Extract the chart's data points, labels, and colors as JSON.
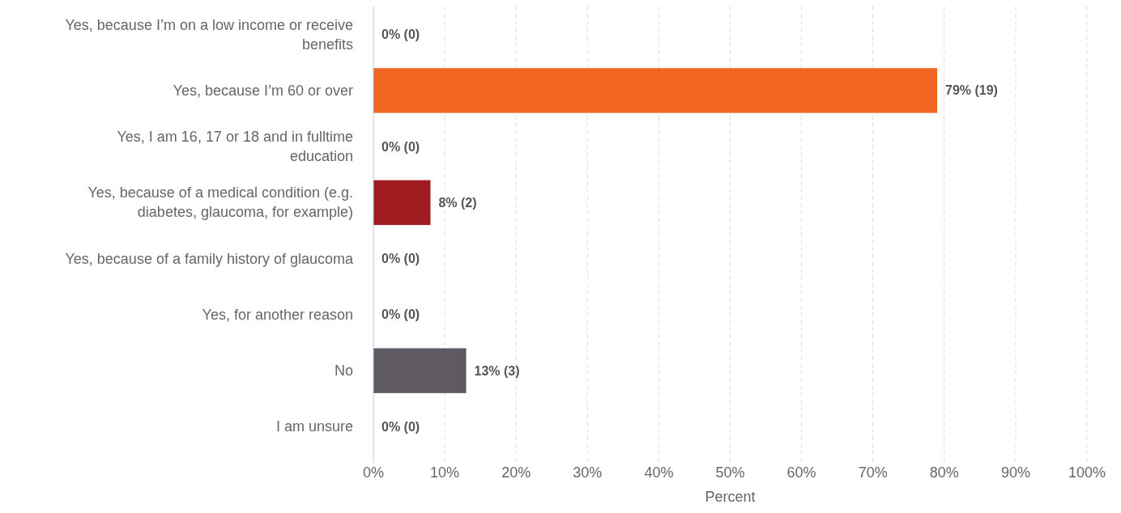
{
  "chart_data": {
    "type": "bar",
    "orientation": "horizontal",
    "xlabel": "Percent",
    "categories": [
      "Yes, because I’m on a low income or receive benefits",
      "Yes, because I’m 60 or over",
      "Yes, I am 16, 17 or 18 and in fulltime education",
      "Yes, because of a medical condition (e.g. diabetes, glaucoma, for example)",
      "Yes, because of a family history of glaucoma",
      "Yes, for another reason",
      "No",
      "I am unsure"
    ],
    "values": [
      0,
      79,
      0,
      8,
      0,
      0,
      13,
      0
    ],
    "colors": [
      "#f26522",
      "#f26522",
      "#f26522",
      "#9e1b1f",
      "#5f5961",
      "#5f5961",
      "#5f5961",
      "#5f5961"
    ],
    "value_labels": [
      "0% (0)",
      "79% (19)",
      "0% (0)",
      "8% (2)",
      "0% (0)",
      "0% (0)",
      "13% (3)",
      "0% (0)"
    ],
    "xlim": [
      0,
      100
    ],
    "xticks": [
      {
        "value": 0,
        "label": "0%"
      },
      {
        "value": 10,
        "label": "10%"
      },
      {
        "value": 20,
        "label": "20%"
      },
      {
        "value": 30,
        "label": "30%"
      },
      {
        "value": 40,
        "label": "40%"
      },
      {
        "value": 50,
        "label": "50%"
      },
      {
        "value": 60,
        "label": "60%"
      },
      {
        "value": 70,
        "label": "70%"
      },
      {
        "value": 80,
        "label": "80%"
      },
      {
        "value": 90,
        "label": "90%"
      },
      {
        "value": 100,
        "label": "100%"
      }
    ],
    "grid": "x"
  }
}
